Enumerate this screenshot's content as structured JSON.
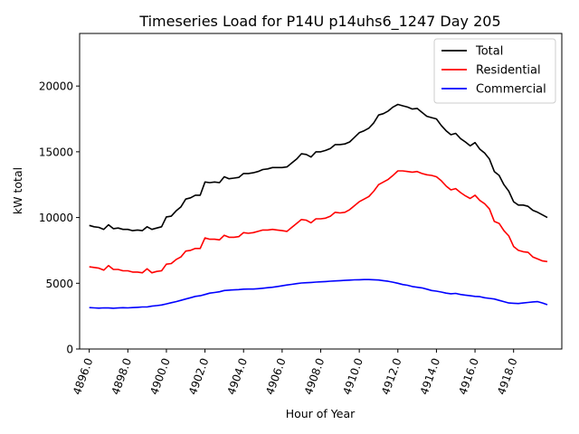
{
  "chart_data": {
    "type": "line",
    "title": "Timeseries Load for P14U p14uhs6_1247  Day 205",
    "xlabel": "Hour of Year",
    "ylabel": "kW total",
    "xlim": [
      4895.5,
      4920.5
    ],
    "ylim": [
      0,
      24000
    ],
    "xticks": [
      4896,
      4898,
      4900,
      4902,
      4904,
      4906,
      4908,
      4910,
      4912,
      4914,
      4916,
      4918
    ],
    "xtick_labels": [
      "4896.0",
      "4898.0",
      "4900.0",
      "4902.0",
      "4904.0",
      "4906.0",
      "4908.0",
      "4910.0",
      "4912.0",
      "4914.0",
      "4916.0",
      "4918.0"
    ],
    "yticks": [
      0,
      5000,
      10000,
      15000,
      20000
    ],
    "ytick_labels": [
      "0",
      "5000",
      "10000",
      "15000",
      "20000"
    ],
    "legend_position": "top-right",
    "x": [
      4896,
      4896.25,
      4896.5,
      4896.75,
      4897,
      4897.25,
      4897.5,
      4897.75,
      4898,
      4898.25,
      4898.5,
      4898.75,
      4899,
      4899.25,
      4899.5,
      4899.75,
      4900,
      4900.25,
      4900.5,
      4900.75,
      4901,
      4901.25,
      4901.5,
      4901.75,
      4902,
      4902.25,
      4902.5,
      4902.75,
      4903,
      4903.25,
      4903.5,
      4903.75,
      4904,
      4904.25,
      4904.5,
      4904.75,
      4905,
      4905.25,
      4905.5,
      4905.75,
      4906,
      4906.25,
      4906.5,
      4906.75,
      4907,
      4907.25,
      4907.5,
      4907.75,
      4908,
      4908.25,
      4908.5,
      4908.75,
      4909,
      4909.25,
      4909.5,
      4909.75,
      4910,
      4910.25,
      4910.5,
      4910.75,
      4911,
      4911.25,
      4911.5,
      4911.75,
      4912,
      4912.25,
      4912.5,
      4912.75,
      4913,
      4913.25,
      4913.5,
      4913.75,
      4914,
      4914.25,
      4914.5,
      4914.75,
      4915,
      4915.25,
      4915.5,
      4915.75,
      4916,
      4916.25,
      4916.5,
      4916.75,
      4917,
      4917.25,
      4917.5,
      4917.75,
      4918,
      4918.25,
      4918.5,
      4918.75,
      4919,
      4919.25,
      4919.5,
      4919.75
    ],
    "series": [
      {
        "name": "Total",
        "color": "#000000",
        "values": [
          9400,
          9300,
          9250,
          9100,
          9450,
          9150,
          9200,
          9100,
          9100,
          9000,
          9050,
          9000,
          9300,
          9100,
          9200,
          9300,
          10050,
          10100,
          10500,
          10800,
          11400,
          11500,
          11700,
          11700,
          12700,
          12650,
          12700,
          12650,
          13100,
          12950,
          13000,
          13050,
          13350,
          13350,
          13400,
          13500,
          13650,
          13700,
          13800,
          13800,
          13800,
          13850,
          14150,
          14450,
          14850,
          14800,
          14600,
          15000,
          15000,
          15100,
          15250,
          15550,
          15550,
          15600,
          15750,
          16100,
          16450,
          16600,
          16800,
          17200,
          17800,
          17900,
          18100,
          18400,
          18600,
          18500,
          18400,
          18250,
          18300,
          18000,
          17700,
          17600,
          17500,
          17000,
          16600,
          16300,
          16400,
          16000,
          15750,
          15450,
          15700,
          15200,
          14900,
          14450,
          13500,
          13200,
          12500,
          12000,
          11200,
          10950,
          10950,
          10850,
          10550,
          10400,
          10200,
          10000
        ]
      },
      {
        "name": "Residential",
        "color": "#ff0000",
        "values": [
          6250,
          6200,
          6150,
          6000,
          6350,
          6050,
          6050,
          5950,
          5950,
          5850,
          5850,
          5800,
          6100,
          5800,
          5900,
          5950,
          6450,
          6500,
          6800,
          7000,
          7450,
          7500,
          7650,
          7650,
          8450,
          8350,
          8350,
          8300,
          8650,
          8500,
          8500,
          8550,
          8850,
          8800,
          8850,
          8950,
          9050,
          9050,
          9100,
          9050,
          9000,
          8950,
          9250,
          9550,
          9850,
          9800,
          9600,
          9900,
          9900,
          9950,
          10100,
          10400,
          10350,
          10400,
          10600,
          10900,
          11200,
          11400,
          11600,
          12000,
          12500,
          12700,
          12900,
          13200,
          13550,
          13550,
          13500,
          13450,
          13500,
          13350,
          13250,
          13200,
          13100,
          12800,
          12400,
          12100,
          12200,
          11900,
          11650,
          11450,
          11700,
          11300,
          11050,
          10650,
          9700,
          9550,
          9000,
          8600,
          7800,
          7500,
          7400,
          7350,
          7000,
          6850,
          6700,
          6650
        ]
      },
      {
        "name": "Commercial",
        "color": "#0000ff",
        "values": [
          3150,
          3130,
          3110,
          3130,
          3120,
          3100,
          3120,
          3140,
          3130,
          3150,
          3170,
          3200,
          3200,
          3260,
          3300,
          3350,
          3430,
          3520,
          3600,
          3700,
          3800,
          3900,
          4000,
          4050,
          4150,
          4250,
          4300,
          4350,
          4450,
          4480,
          4500,
          4520,
          4550,
          4560,
          4560,
          4590,
          4620,
          4660,
          4700,
          4750,
          4810,
          4870,
          4920,
          4970,
          5020,
          5040,
          5060,
          5090,
          5110,
          5130,
          5160,
          5180,
          5200,
          5220,
          5240,
          5260,
          5270,
          5280,
          5280,
          5270,
          5250,
          5200,
          5150,
          5080,
          5000,
          4900,
          4850,
          4750,
          4700,
          4650,
          4550,
          4450,
          4400,
          4330,
          4250,
          4200,
          4230,
          4150,
          4100,
          4050,
          4000,
          3980,
          3900,
          3850,
          3800,
          3700,
          3600,
          3500,
          3480,
          3460,
          3500,
          3540,
          3580,
          3600,
          3500,
          3370
        ]
      }
    ]
  }
}
